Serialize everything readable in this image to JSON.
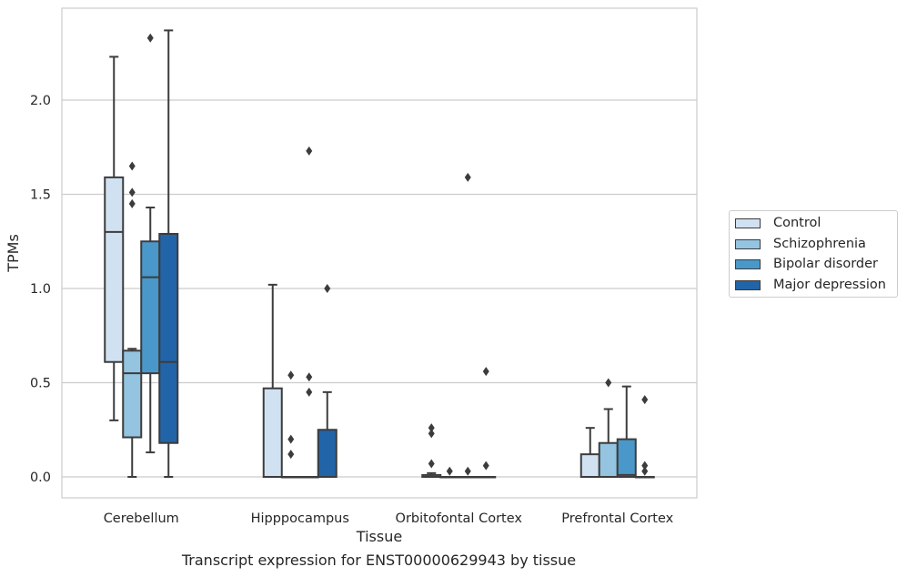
{
  "chart_data": {
    "type": "box",
    "xlabel": "Tissue",
    "ylabel": "TPMs",
    "caption": "Transcript expression for ENST00000629943 by tissue",
    "ylim": [
      -0.11,
      2.5
    ],
    "yticks": [
      "0.0",
      "0.5",
      "1.0",
      "1.5",
      "2.0"
    ],
    "categories": [
      "Cerebellum",
      "Hipppocampus",
      "Orbitofontal Cortex",
      "Prefrontal Cortex"
    ],
    "legend_position": "right-center",
    "grid": true,
    "series": [
      {
        "name": "Control",
        "color": "#d0e1f2",
        "boxes": [
          {
            "whislo": 0.3,
            "q1": 0.61,
            "med": 1.3,
            "q3": 1.59,
            "whishi": 2.23,
            "fliers": []
          },
          {
            "whislo": 0.0,
            "q1": 0.0,
            "med": 0.0,
            "q3": 0.47,
            "whishi": 1.02,
            "fliers": []
          },
          {
            "whislo": 0.0,
            "q1": 0.0,
            "med": 0.0,
            "q3": 0.01,
            "whishi": 0.02,
            "fliers": [
              0.07,
              0.23,
              0.26
            ]
          },
          {
            "whislo": 0.0,
            "q1": 0.0,
            "med": 0.0,
            "q3": 0.12,
            "whishi": 0.26,
            "fliers": []
          }
        ]
      },
      {
        "name": "Schizophrenia",
        "color": "#94c4df",
        "boxes": [
          {
            "whislo": 0.0,
            "q1": 0.21,
            "med": 0.55,
            "q3": 0.67,
            "whishi": 0.68,
            "fliers": [
              1.45,
              1.51,
              1.65
            ]
          },
          {
            "whislo": 0.0,
            "q1": 0.0,
            "med": 0.0,
            "q3": 0.0,
            "whishi": 0.0,
            "fliers": [
              0.12,
              0.2,
              0.54
            ]
          },
          {
            "whislo": 0.0,
            "q1": 0.0,
            "med": 0.0,
            "q3": 0.0,
            "whishi": 0.0,
            "fliers": [
              0.03
            ]
          },
          {
            "whislo": 0.0,
            "q1": 0.0,
            "med": 0.0,
            "q3": 0.18,
            "whishi": 0.36,
            "fliers": [
              0.5
            ]
          }
        ]
      },
      {
        "name": "Bipolar disorder",
        "color": "#4a98c9",
        "boxes": [
          {
            "whislo": 0.13,
            "q1": 0.55,
            "med": 1.06,
            "q3": 1.25,
            "whishi": 1.43,
            "fliers": [
              2.33
            ]
          },
          {
            "whislo": 0.0,
            "q1": 0.0,
            "med": 0.0,
            "q3": 0.0,
            "whishi": 0.0,
            "fliers": [
              0.45,
              0.53,
              1.73
            ]
          },
          {
            "whislo": 0.0,
            "q1": 0.0,
            "med": 0.0,
            "q3": 0.0,
            "whishi": 0.0,
            "fliers": [
              0.03,
              1.59
            ]
          },
          {
            "whislo": 0.0,
            "q1": 0.0,
            "med": 0.01,
            "q3": 0.2,
            "whishi": 0.48,
            "fliers": []
          }
        ]
      },
      {
        "name": "Major depression",
        "color": "#2264a8",
        "boxes": [
          {
            "whislo": 0.0,
            "q1": 0.18,
            "med": 0.61,
            "q3": 1.29,
            "whishi": 2.37,
            "fliers": []
          },
          {
            "whislo": 0.0,
            "q1": 0.0,
            "med": 0.0,
            "q3": 0.25,
            "whishi": 0.45,
            "fliers": [
              1.0
            ]
          },
          {
            "whislo": 0.0,
            "q1": 0.0,
            "med": 0.0,
            "q3": 0.0,
            "whishi": 0.0,
            "fliers": [
              0.06,
              0.56
            ]
          },
          {
            "whislo": 0.0,
            "q1": 0.0,
            "med": 0.0,
            "q3": 0.0,
            "whishi": 0.0,
            "fliers": [
              0.03,
              0.06,
              0.41
            ]
          }
        ]
      }
    ]
  }
}
